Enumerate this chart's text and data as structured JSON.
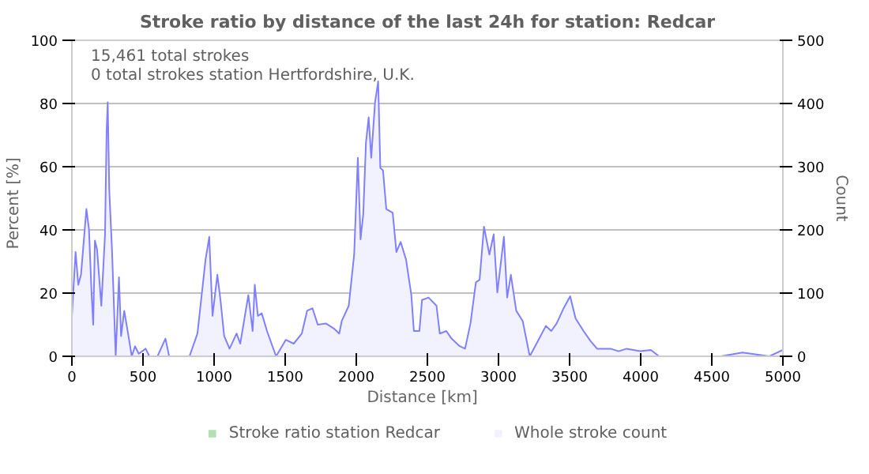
{
  "chart_data": {
    "type": "area",
    "title": "Stroke ratio by distance of the last 24h for station: Redcar",
    "annotations": [
      "15,461 total strokes",
      "0 total strokes station Hertfordshire, U.K."
    ],
    "xlabel": "Distance   [km]",
    "ylabel": "Percent   [%]",
    "y2label": "Count",
    "xlim": [
      0,
      5000
    ],
    "xticks": [
      0,
      500,
      1000,
      1500,
      2000,
      2500,
      3000,
      3500,
      4000,
      4500,
      5000
    ],
    "ylim": [
      0,
      100
    ],
    "yticks": [
      0,
      20,
      40,
      60,
      80,
      100
    ],
    "y2lim": [
      0,
      500
    ],
    "y2ticks": [
      0,
      100,
      200,
      300,
      400,
      500
    ],
    "grid": "y",
    "legend": "bottom",
    "x": [
      0,
      26,
      45,
      64,
      102,
      120,
      139,
      150,
      162,
      177,
      207,
      233,
      244,
      252,
      263,
      282,
      308,
      331,
      346,
      368,
      395,
      421,
      444,
      470,
      519,
      545,
      602,
      658,
      684,
      827,
      883,
      940,
      966,
      989,
      1023,
      1045,
      1071,
      1109,
      1158,
      1184,
      1241,
      1271,
      1286,
      1308,
      1335,
      1372,
      1436,
      1504,
      1560,
      1617,
      1654,
      1692,
      1729,
      1786,
      1842,
      1880,
      1898,
      1947,
      1985,
      2011,
      2030,
      2049,
      2068,
      2087,
      2105,
      2132,
      2154,
      2169,
      2188,
      2211,
      2256,
      2282,
      2312,
      2350,
      2387,
      2405,
      2444,
      2462,
      2508,
      2564,
      2587,
      2633,
      2670,
      2727,
      2765,
      2803,
      2841,
      2867,
      2898,
      2936,
      2966,
      2992,
      3038,
      3061,
      3087,
      3125,
      3170,
      3220,
      3277,
      3333,
      3371,
      3409,
      3458,
      3504,
      3542,
      3598,
      3648,
      3693,
      3788,
      3845,
      3902,
      3996,
      4072,
      4129,
      4564,
      4716,
      4905,
      5000
    ],
    "series": [
      {
        "name": "Stroke ratio station Redcar",
        "color": "#b3e0b3",
        "values": [
          null,
          null,
          null,
          null,
          null,
          null,
          null,
          null,
          null,
          null,
          null,
          null,
          null,
          null,
          null,
          null,
          null,
          null,
          null,
          null,
          null,
          null,
          null,
          null,
          null,
          null,
          null,
          null,
          null,
          null,
          null,
          null,
          null,
          null,
          null,
          null,
          null,
          null,
          null,
          null,
          null,
          null,
          null,
          null,
          null,
          null,
          null,
          null,
          null,
          null,
          null,
          null,
          null,
          null,
          null,
          null,
          null,
          null,
          null,
          null,
          null,
          null,
          null,
          null,
          null,
          null,
          null,
          null,
          null,
          null,
          null,
          null,
          null,
          null,
          null,
          null,
          null,
          null,
          null,
          null,
          null,
          null,
          null,
          null,
          null,
          null,
          null,
          null,
          null,
          null,
          null,
          null,
          null,
          null,
          null,
          null,
          null,
          null,
          null,
          null,
          null,
          null,
          null,
          null,
          null,
          null,
          null,
          null,
          null,
          null,
          null,
          null,
          null,
          null,
          null,
          null,
          null,
          null
        ]
      },
      {
        "name": "Whole stroke count",
        "color": "#8080ff",
        "axis": "y2",
        "values": [
          64,
          165,
          113,
          129,
          233,
          201,
          97,
          50,
          183,
          169,
          80,
          193,
          354,
          402,
          262,
          169,
          0,
          125,
          32,
          72,
          36,
          0,
          16,
          4,
          12,
          0,
          0,
          28,
          0,
          0,
          36,
          153,
          189,
          64,
          129,
          89,
          32,
          12,
          36,
          20,
          97,
          40,
          113,
          64,
          68,
          40,
          0,
          26,
          20,
          36,
          72,
          76,
          50,
          52,
          44,
          36,
          56,
          80,
          161,
          314,
          185,
          225,
          338,
          378,
          314,
          402,
          435,
          298,
          294,
          233,
          227,
          165,
          181,
          153,
          97,
          40,
          40,
          89,
          93,
          80,
          36,
          40,
          28,
          16,
          12,
          52,
          117,
          121,
          205,
          161,
          193,
          101,
          189,
          93,
          129,
          72,
          56,
          0,
          24,
          48,
          40,
          52,
          76,
          95,
          60,
          40,
          24,
          12,
          12,
          8,
          12,
          8,
          10,
          0,
          0,
          6,
          0,
          10
        ]
      }
    ]
  }
}
